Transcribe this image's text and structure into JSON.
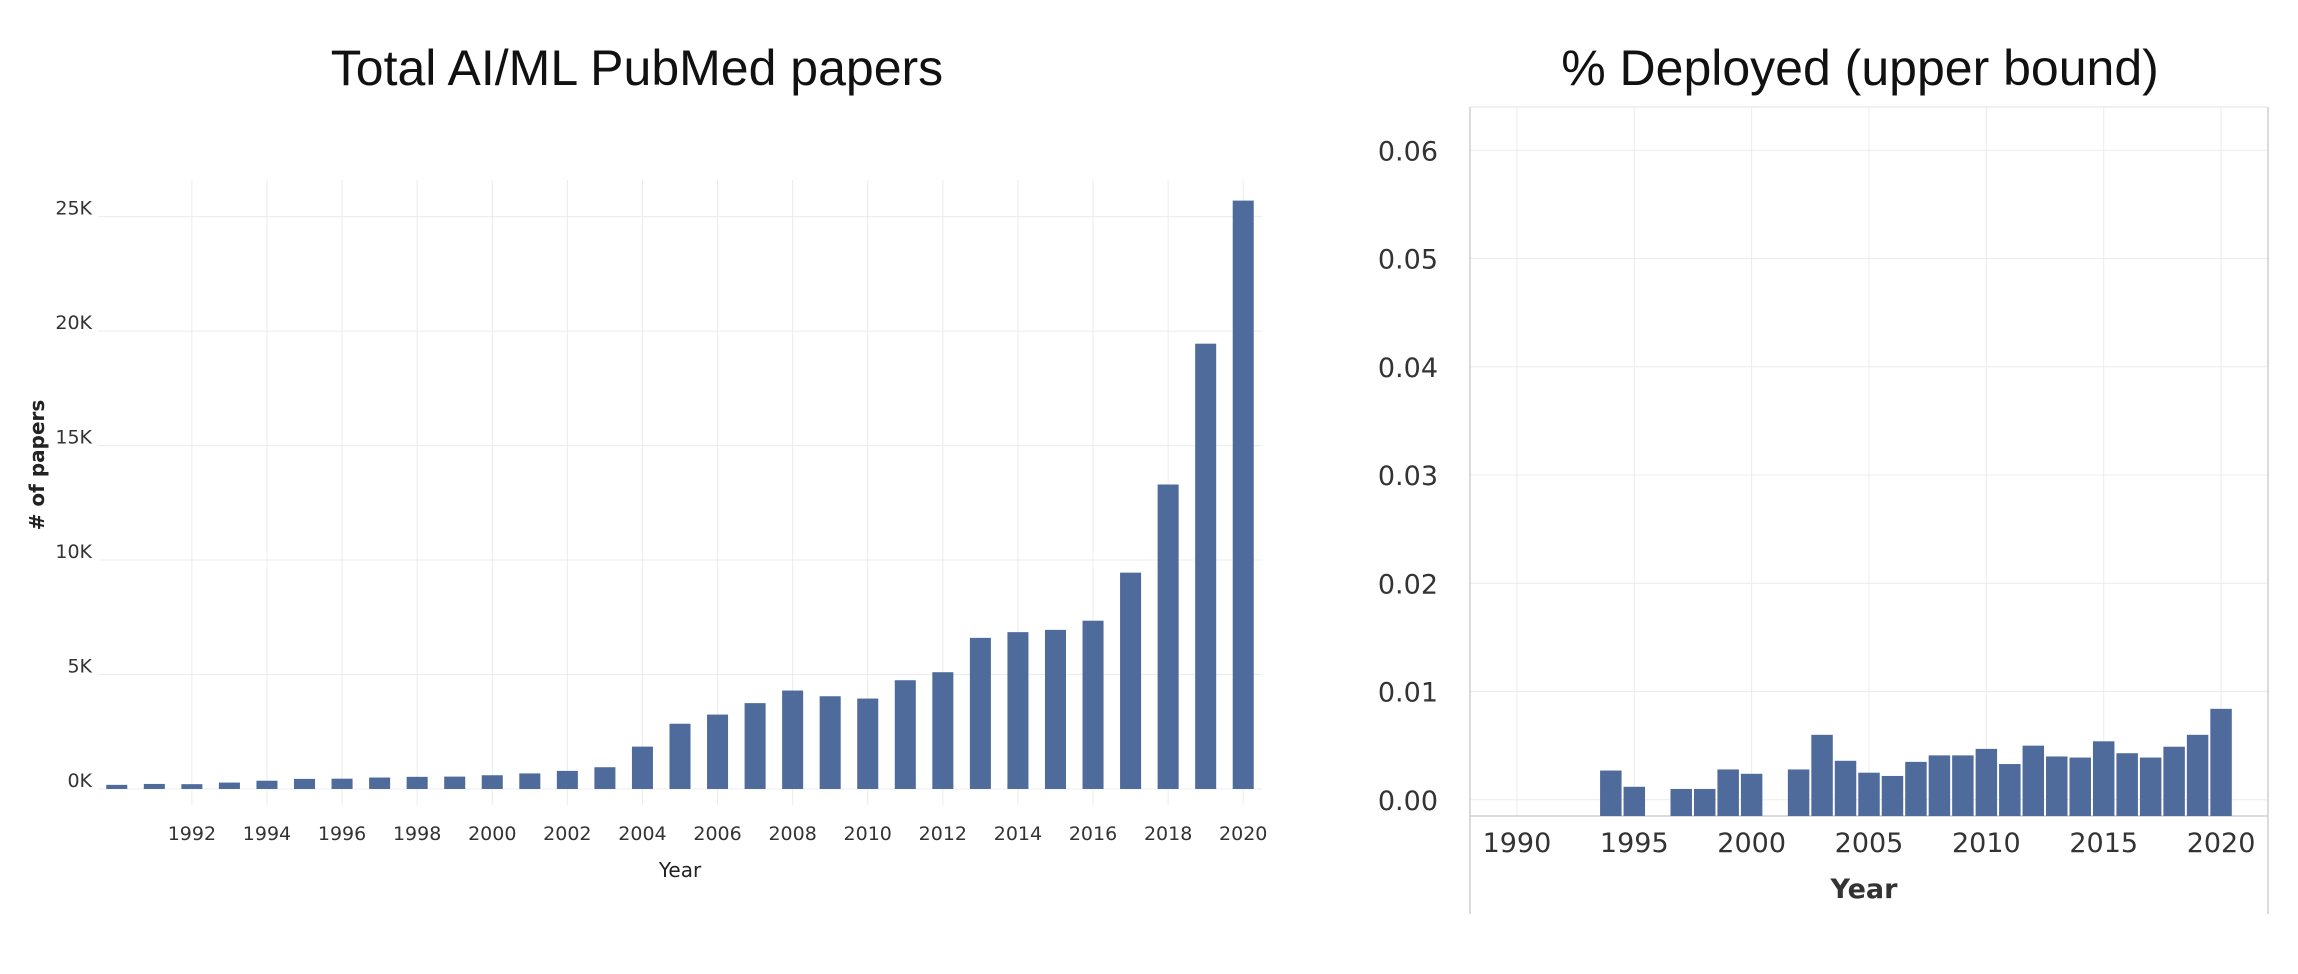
{
  "chart_data": [
    {
      "type": "bar",
      "title": "Total AI/ML PubMed papers",
      "xlabel": "Year",
      "ylabel": "# of papers",
      "x": [
        1990,
        1991,
        1992,
        1993,
        1994,
        1995,
        1996,
        1997,
        1998,
        1999,
        2000,
        2001,
        2002,
        2003,
        2004,
        2005,
        2006,
        2007,
        2008,
        2009,
        2010,
        2011,
        2012,
        2013,
        2014,
        2015,
        2016,
        2017,
        2018,
        2019,
        2020
      ],
      "values": [
        180,
        220,
        210,
        280,
        360,
        440,
        450,
        500,
        530,
        540,
        600,
        680,
        790,
        950,
        1850,
        2850,
        3250,
        3750,
        4300,
        4050,
        3950,
        4750,
        5100,
        6600,
        6850,
        6950,
        7350,
        9450,
        13300,
        19450,
        25700
      ],
      "ylim": [
        -700,
        26600
      ],
      "yticks": [
        0,
        5000,
        10000,
        15000,
        20000,
        25000
      ],
      "ytick_labels": [
        "0K",
        "5K",
        "10K",
        "15K",
        "20K",
        "25K"
      ],
      "xtick_labels": [
        "1992",
        "1994",
        "1996",
        "1998",
        "2000",
        "2002",
        "2004",
        "2006",
        "2008",
        "2010",
        "2012",
        "2014",
        "2016",
        "2018",
        "2020"
      ],
      "grid": true,
      "color": "#4e6b9b"
    },
    {
      "type": "bar",
      "title": "% Deployed (upper bound)",
      "xlabel": "Year",
      "ylabel": "",
      "x": [
        1990,
        1991,
        1992,
        1993,
        1994,
        1995,
        1996,
        1997,
        1998,
        1999,
        2000,
        2001,
        2002,
        2003,
        2004,
        2005,
        2006,
        2007,
        2008,
        2009,
        2010,
        2011,
        2012,
        2013,
        2014,
        2015,
        2016,
        2017,
        2018,
        2019,
        2020
      ],
      "values": [
        0,
        0,
        0,
        0,
        0.0027,
        0.0012,
        0,
        0.001,
        0.001,
        0.0028,
        0.0024,
        0,
        0.0028,
        0.006,
        0.0036,
        0.0025,
        0.0022,
        0.0035,
        0.0041,
        0.0041,
        0.0047,
        0.0033,
        0.005,
        0.004,
        0.0039,
        0.0054,
        0.0043,
        0.0039,
        0.0049,
        0.006,
        0.0084
      ],
      "ylim": [
        -0.0015,
        0.064
      ],
      "yticks": [
        0,
        0.01,
        0.02,
        0.03,
        0.04,
        0.05,
        0.06
      ],
      "ytick_labels": [
        "0.00",
        "0.01",
        "0.02",
        "0.03",
        "0.04",
        "0.05",
        "0.06"
      ],
      "xticks": [
        1990,
        1995,
        2000,
        2005,
        2010,
        2015,
        2020
      ],
      "xtick_labels": [
        "1990",
        "1995",
        "2000",
        "2005",
        "2010",
        "2015",
        "2020"
      ],
      "grid": true,
      "color": "#4e6b9b"
    }
  ]
}
